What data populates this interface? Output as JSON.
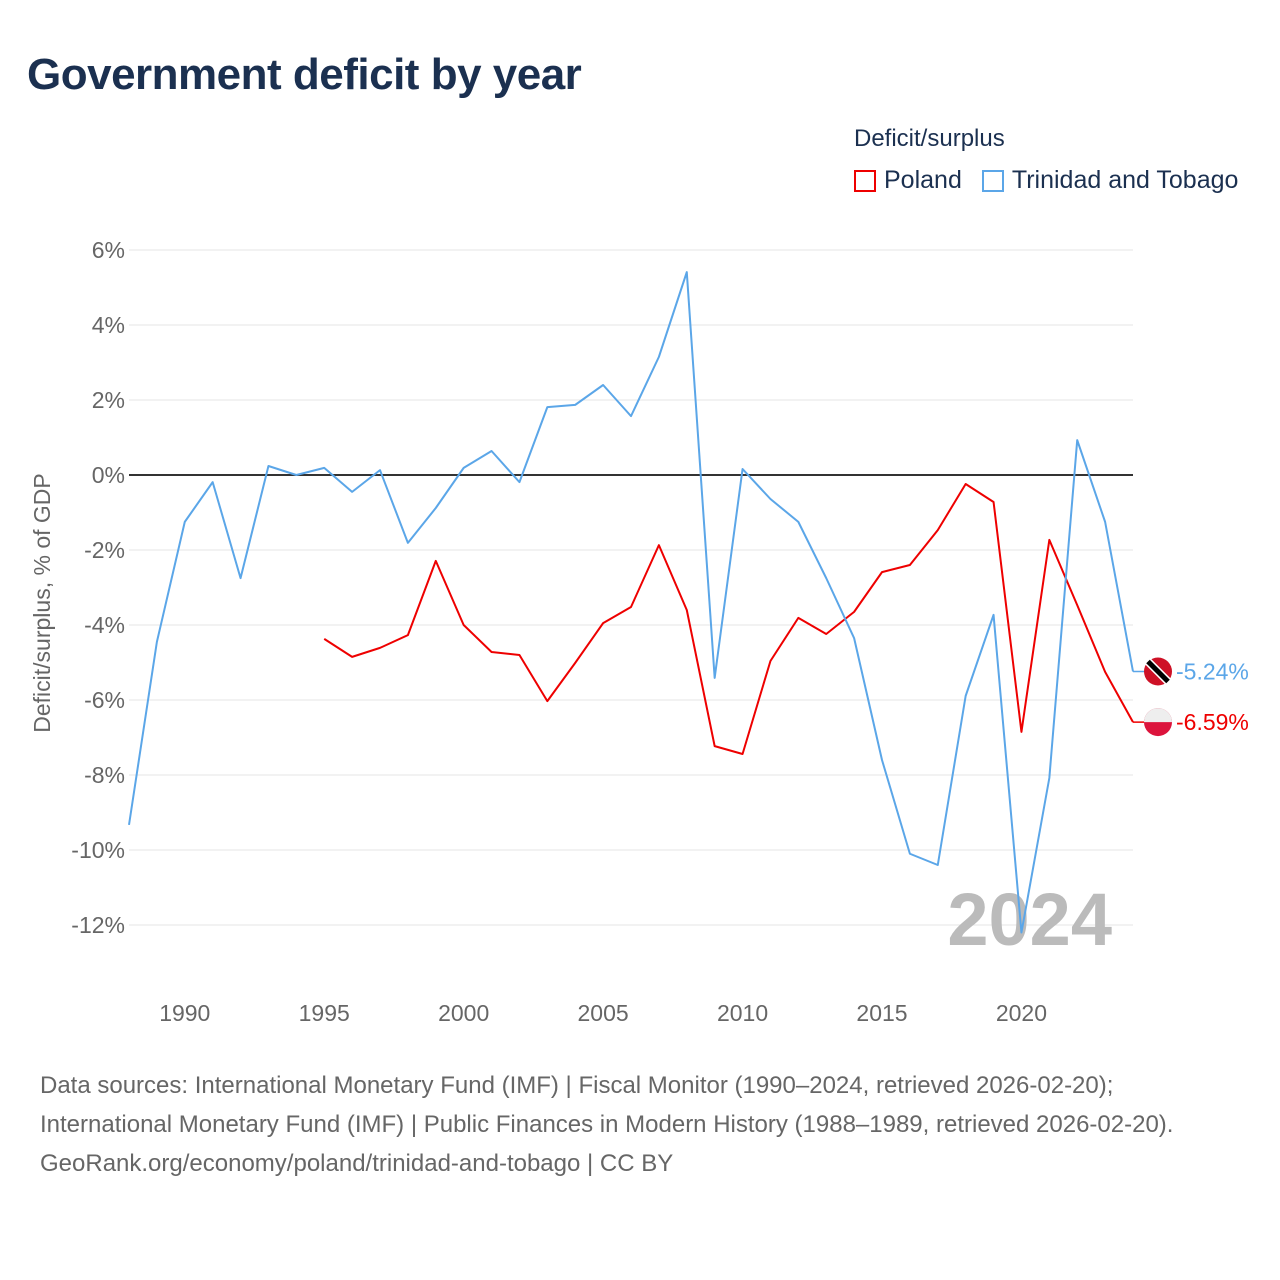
{
  "title": "Government deficit by year",
  "legend": {
    "title": "Deficit/surplus",
    "items": [
      {
        "name": "Poland",
        "color": "#ee0000"
      },
      {
        "name": "Trinidad and Tobago",
        "color": "#5ba6e8"
      }
    ]
  },
  "year_label": "2024",
  "footer": {
    "sources": "Data sources: International Monetary Fund (IMF) | Fiscal Monitor (1990–2024, retrieved 2026-02-20); International Monetary Fund (IMF) | Public Finances in Modern History (1988–1989, retrieved 2026-02-20).",
    "credit": "GeoRank.org/economy/poland/trinidad-and-tobago | CC BY"
  },
  "chart_data": {
    "type": "line",
    "title": "Government deficit by year",
    "xlabel": "",
    "ylabel": "Deficit/surplus, % of GDP",
    "xlim": [
      1988,
      2024
    ],
    "ylim": [
      -12,
      6
    ],
    "xticks": [
      1990,
      1995,
      2000,
      2005,
      2010,
      2015,
      2020
    ],
    "yticks": [
      6,
      4,
      2,
      0,
      -2,
      -4,
      -6,
      -8,
      -10,
      -12
    ],
    "ytick_labels": [
      "6%",
      "4%",
      "2%",
      "0%",
      "-2%",
      "-4%",
      "-6%",
      "-8%",
      "-10%",
      "-12%"
    ],
    "grid": true,
    "legend_position": "top-right",
    "series": [
      {
        "name": "Poland",
        "color": "#ee0000",
        "end_label": "-6.59%",
        "start_year": 1995,
        "values": [
          -4.37,
          -4.85,
          -4.61,
          -4.27,
          -2.29,
          -4.0,
          -4.72,
          -4.8,
          -6.03,
          -5.01,
          -3.95,
          -3.52,
          -1.87,
          -3.6,
          -7.23,
          -7.44,
          -4.96,
          -3.81,
          -4.24,
          -3.65,
          -2.59,
          -2.4,
          -1.47,
          -0.24,
          -0.72,
          -6.85,
          -1.73,
          -3.47,
          -5.25,
          -6.59
        ]
      },
      {
        "name": "Trinidad and Tobago",
        "color": "#5ba6e8",
        "end_label": "-5.24%",
        "start_year": 1988,
        "values": [
          -9.33,
          -4.45,
          -1.25,
          -0.19,
          -2.75,
          0.24,
          0.0,
          0.19,
          -0.45,
          0.13,
          -1.81,
          -0.88,
          0.19,
          0.64,
          -0.19,
          1.81,
          1.87,
          2.4,
          1.57,
          3.15,
          5.41,
          -5.41,
          0.16,
          -0.64,
          -1.25,
          -2.75,
          -4.35,
          -7.6,
          -10.1,
          -10.4,
          -5.89,
          -3.73,
          -12.2,
          -8.08,
          0.93,
          -1.25,
          -5.24
        ]
      }
    ]
  }
}
